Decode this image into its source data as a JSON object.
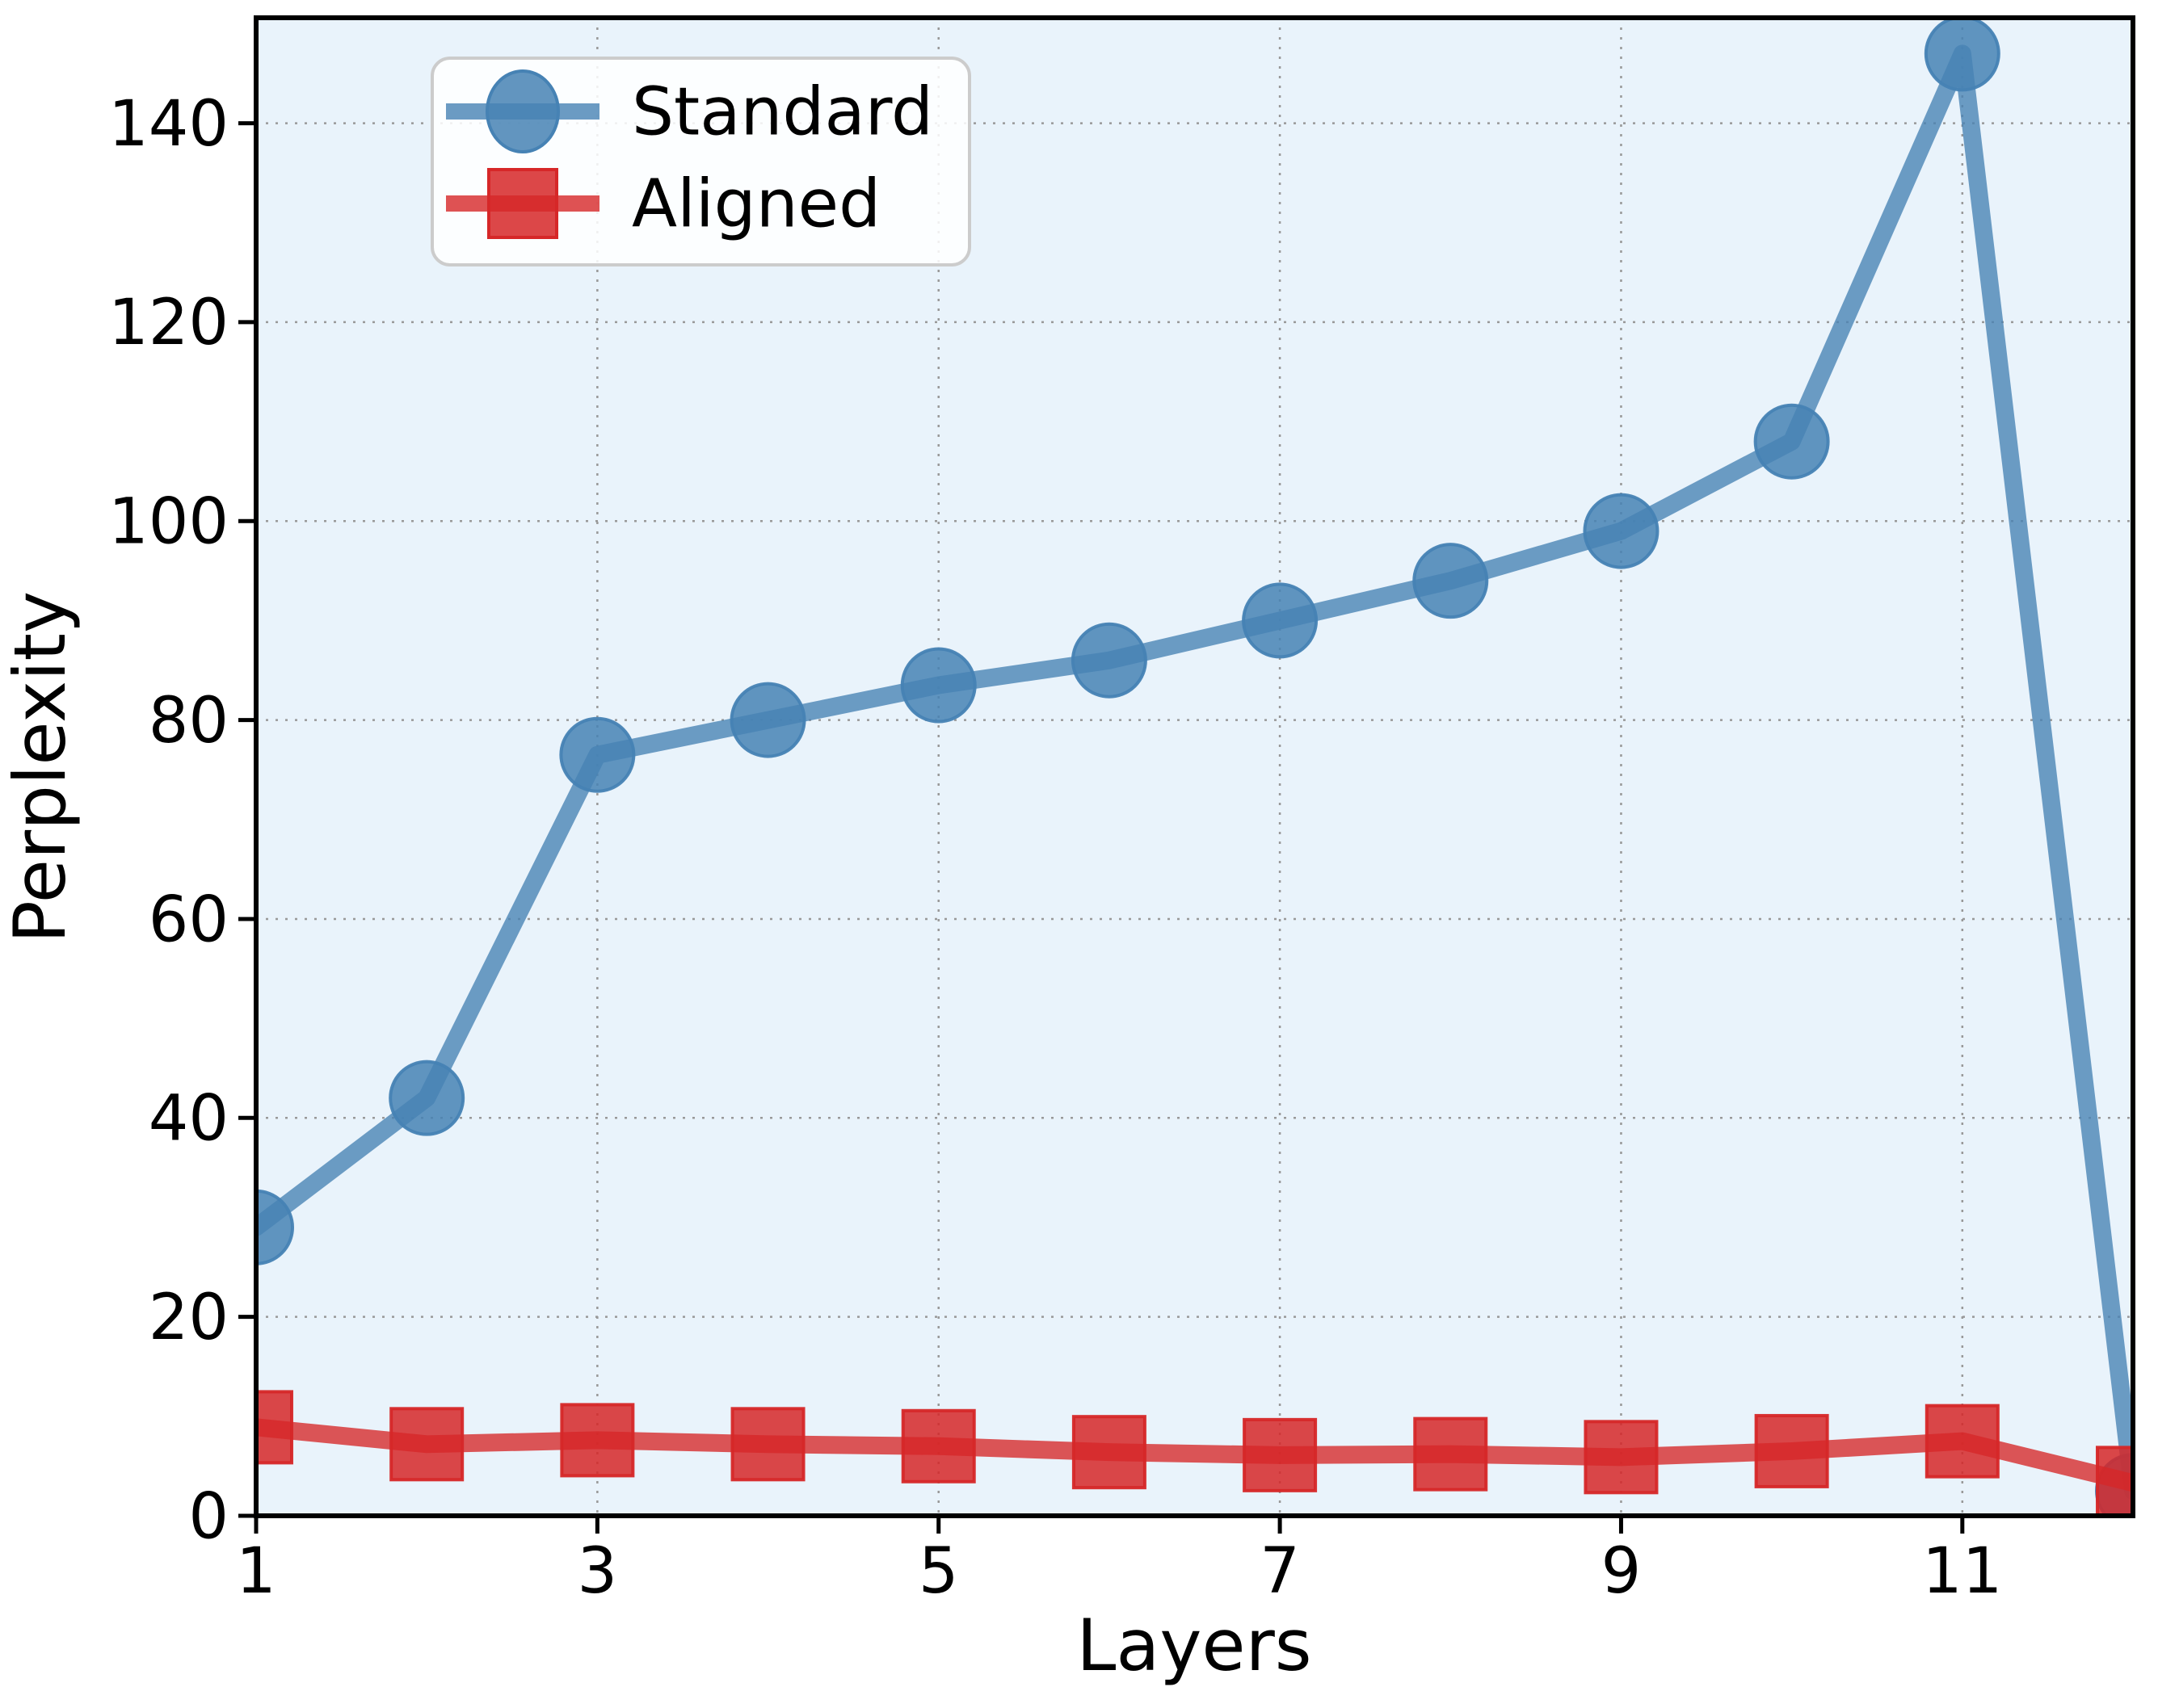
{
  "chart_data": {
    "type": "line",
    "title": "",
    "xlabel": "Layers",
    "ylabel": "Perplexity",
    "x": [
      1,
      2,
      3,
      4,
      5,
      6,
      7,
      8,
      9,
      10,
      11,
      12
    ],
    "series": [
      {
        "name": "Standard",
        "marker": "circle",
        "color": "#4682b4",
        "values": [
          29,
          42,
          76.5,
          80,
          83.5,
          86,
          90,
          94,
          99,
          108,
          147,
          2.5
        ]
      },
      {
        "name": "Aligned",
        "marker": "square",
        "color": "#d62728",
        "values": [
          8.9,
          7.2,
          7.6,
          7.2,
          7.0,
          6.4,
          6.1,
          6.2,
          5.9,
          6.5,
          7.5,
          3.3
        ]
      }
    ],
    "xlim": [
      1,
      12
    ],
    "ylim": [
      0,
      150.6
    ],
    "x_ticks": [
      1,
      3,
      5,
      7,
      9,
      11
    ],
    "y_ticks": [
      0,
      20,
      40,
      60,
      80,
      100,
      120,
      140
    ],
    "grid": true,
    "grid_style": "dotted",
    "legend_position": "upper left",
    "plot_bg": "#e9f3fb",
    "grid_color": "#999999",
    "spine_color": "#000000",
    "tick_label_color": "#000000"
  },
  "legend": {
    "items": [
      {
        "label": "Standard"
      },
      {
        "label": "Aligned"
      }
    ]
  },
  "axes": {
    "xlabel": "Layers",
    "ylabel": "Perplexity"
  }
}
